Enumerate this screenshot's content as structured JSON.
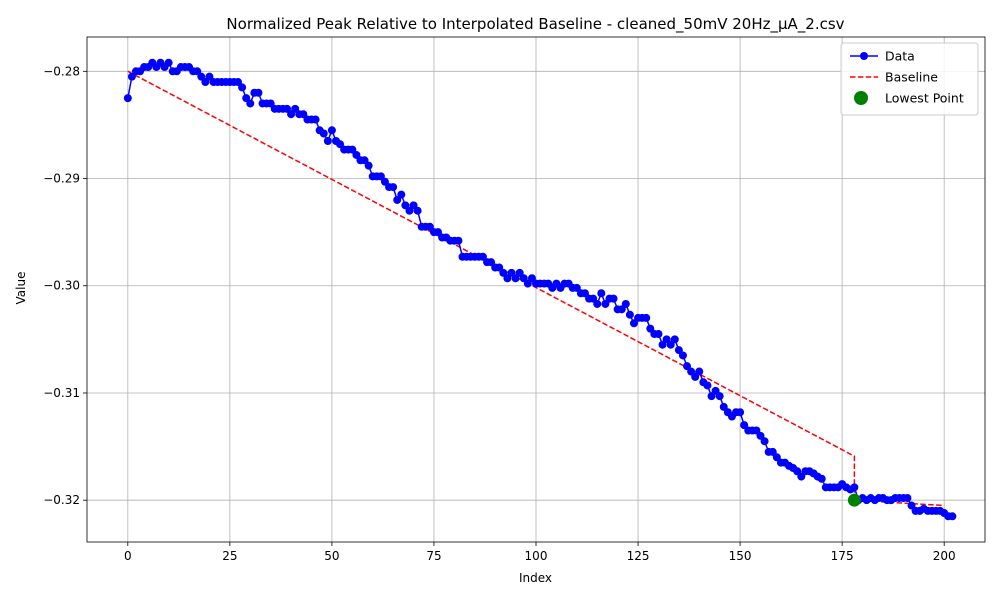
{
  "chart_data": {
    "type": "line",
    "title": "Normalized Peak Relative to Interpolated Baseline - cleaned_50mV 20Hz_μA_2.csv",
    "xlabel": "Index",
    "ylabel": "Value",
    "xlim": [
      -10,
      210
    ],
    "ylim": [
      -0.3239,
      -0.2768
    ],
    "xticks": [
      0,
      25,
      50,
      75,
      100,
      125,
      150,
      175,
      200
    ],
    "xtick_labels": [
      "0",
      "25",
      "50",
      "75",
      "100",
      "125",
      "150",
      "175",
      "200"
    ],
    "yticks": [
      -0.28,
      -0.29,
      -0.3,
      -0.31,
      -0.32
    ],
    "ytick_labels": [
      "−0.28",
      "−0.29",
      "−0.30",
      "−0.31",
      "−0.32"
    ],
    "grid": true,
    "legend_position": "top-right",
    "legend": [
      {
        "label": "Data",
        "style": "line-marker",
        "color": "#0000ff"
      },
      {
        "label": "Baseline",
        "style": "dashed",
        "color": "#ff0000"
      },
      {
        "label": "Lowest Point",
        "style": "marker",
        "color": "#008000"
      }
    ],
    "series": [
      {
        "name": "Data",
        "color": "#0000ff",
        "x_start": 0,
        "values": [
          -0.2825,
          -0.2805,
          -0.28,
          -0.28,
          -0.2796,
          -0.2796,
          -0.2792,
          -0.2796,
          -0.2792,
          -0.2796,
          -0.2792,
          -0.28,
          -0.28,
          -0.2796,
          -0.2796,
          -0.2796,
          -0.28,
          -0.28,
          -0.2805,
          -0.281,
          -0.2805,
          -0.281,
          -0.281,
          -0.281,
          -0.281,
          -0.281,
          -0.281,
          -0.281,
          -0.2815,
          -0.2825,
          -0.283,
          -0.282,
          -0.282,
          -0.283,
          -0.283,
          -0.283,
          -0.2835,
          -0.2835,
          -0.2835,
          -0.2835,
          -0.284,
          -0.2835,
          -0.284,
          -0.284,
          -0.2845,
          -0.2845,
          -0.2845,
          -0.2855,
          -0.2858,
          -0.2865,
          -0.2855,
          -0.2865,
          -0.2868,
          -0.2873,
          -0.2873,
          -0.2873,
          -0.2878,
          -0.2883,
          -0.2883,
          -0.2888,
          -0.2898,
          -0.2898,
          -0.2898,
          -0.2903,
          -0.2908,
          -0.2908,
          -0.292,
          -0.2915,
          -0.2925,
          -0.293,
          -0.2925,
          -0.293,
          -0.2945,
          -0.2945,
          -0.2945,
          -0.295,
          -0.295,
          -0.2955,
          -0.2955,
          -0.2958,
          -0.2958,
          -0.2958,
          -0.2973,
          -0.2973,
          -0.2973,
          -0.2973,
          -0.2973,
          -0.2973,
          -0.2978,
          -0.2978,
          -0.2983,
          -0.2983,
          -0.2988,
          -0.2993,
          -0.2988,
          -0.2993,
          -0.2988,
          -0.2993,
          -0.2998,
          -0.2993,
          -0.2998,
          -0.2998,
          -0.2998,
          -0.2998,
          -0.3002,
          -0.2998,
          -0.3002,
          -0.2998,
          -0.2998,
          -0.3002,
          -0.3002,
          -0.3007,
          -0.3007,
          -0.3012,
          -0.3012,
          -0.3017,
          -0.3007,
          -0.3017,
          -0.3012,
          -0.3012,
          -0.3022,
          -0.3022,
          -0.3017,
          -0.3027,
          -0.3035,
          -0.303,
          -0.303,
          -0.303,
          -0.304,
          -0.3045,
          -0.3045,
          -0.3055,
          -0.305,
          -0.3055,
          -0.305,
          -0.306,
          -0.3065,
          -0.3075,
          -0.308,
          -0.3085,
          -0.308,
          -0.309,
          -0.3093,
          -0.3103,
          -0.3098,
          -0.3103,
          -0.3113,
          -0.3118,
          -0.3122,
          -0.3118,
          -0.3118,
          -0.313,
          -0.3135,
          -0.3135,
          -0.3135,
          -0.314,
          -0.3145,
          -0.3155,
          -0.3155,
          -0.316,
          -0.3165,
          -0.3165,
          -0.3168,
          -0.317,
          -0.3173,
          -0.3178,
          -0.3173,
          -0.3173,
          -0.3175,
          -0.3178,
          -0.318,
          -0.3188,
          -0.3188,
          -0.3188,
          -0.3188,
          -0.3185,
          -0.3188,
          -0.319,
          -0.3188,
          -0.32,
          -0.3198,
          -0.32,
          -0.3198,
          -0.32,
          -0.3198,
          -0.3198,
          -0.32,
          -0.32,
          -0.3198,
          -0.3198,
          -0.3198,
          -0.3198,
          -0.3205,
          -0.321,
          -0.321,
          -0.3208,
          -0.321,
          -0.321,
          -0.321,
          -0.321,
          -0.3212,
          -0.3215,
          -0.3215
        ]
      },
      {
        "name": "Baseline",
        "color": "#ff0000",
        "x": [
          0,
          178,
          178,
          200
        ],
        "y": [
          -0.28,
          -0.3159,
          -0.32,
          -0.3205
        ]
      },
      {
        "name": "Lowest Point",
        "color": "#008000",
        "x": [
          178
        ],
        "y": [
          -0.32
        ]
      }
    ]
  }
}
